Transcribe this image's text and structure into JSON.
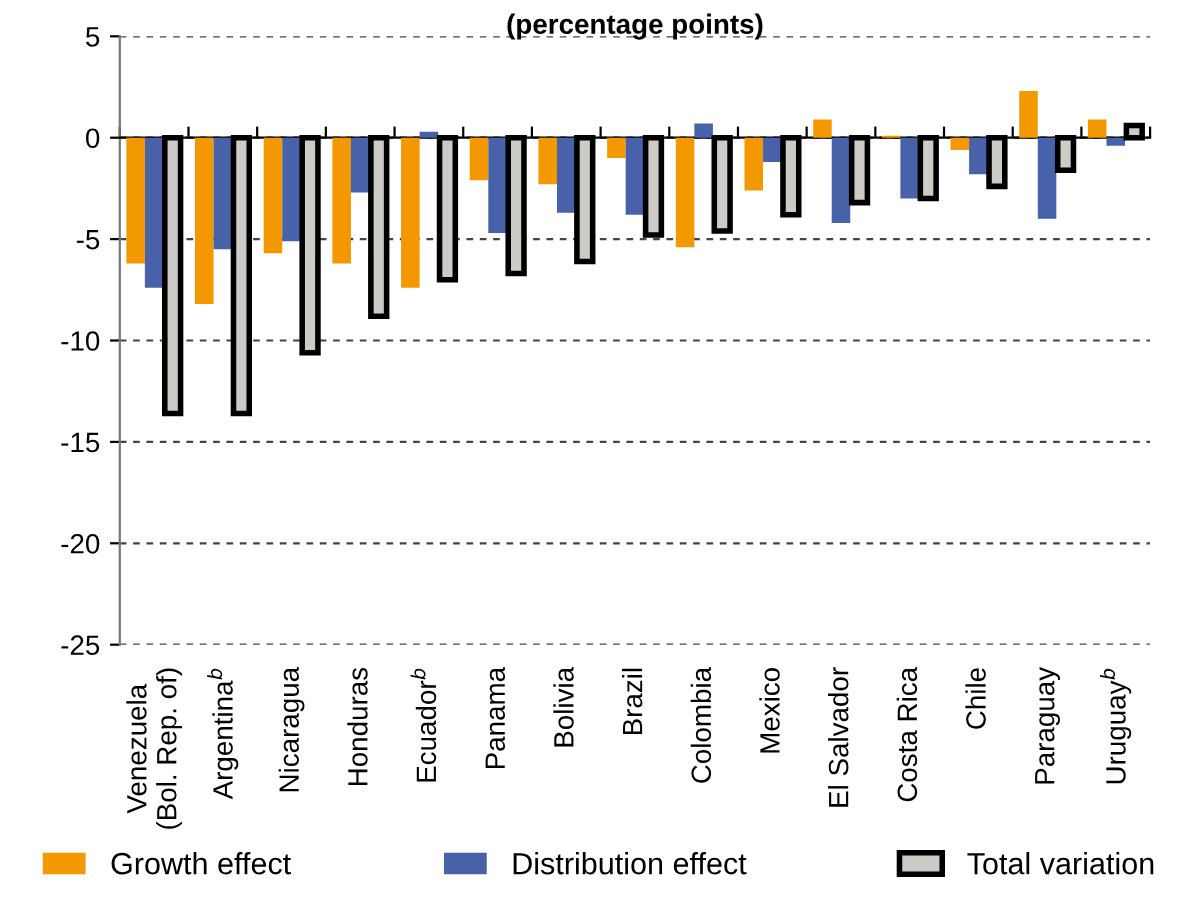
{
  "chart_data": {
    "type": "bar",
    "title": "(percentage points)",
    "categories": [
      "Venezuela\n(Bol. Rep. of)",
      "Argentina$^{b}$",
      "Nicaragua",
      "Honduras",
      "Ecuador$^{b}$",
      "Panama",
      "Bolivia",
      "Brazil",
      "Colombia",
      "Mexico",
      "El Salvador",
      "Costa Rica",
      "Chile",
      "Paraguay",
      "Uruguay$^{b}$"
    ],
    "series": [
      {
        "name": "Growth effect",
        "color": "#f39800",
        "values": [
          -6.2,
          -8.2,
          -5.7,
          -6.2,
          -7.4,
          -2.1,
          -2.3,
          -1.0,
          -5.4,
          -2.6,
          0.9,
          0.1,
          -0.6,
          2.3,
          0.9
        ]
      },
      {
        "name": "Distribution effect",
        "color": "#4762a8",
        "values": [
          -7.4,
          -5.5,
          -5.1,
          -2.7,
          0.3,
          -4.7,
          -3.7,
          -3.8,
          0.7,
          -1.2,
          -4.2,
          -3.0,
          -1.8,
          -4.0,
          -0.4
        ]
      },
      {
        "name": "Total variation",
        "color": "#cccbc6",
        "values": [
          -13.6,
          -13.6,
          -10.6,
          -8.8,
          -7.0,
          -6.7,
          -6.1,
          -4.8,
          -4.6,
          -3.8,
          -3.2,
          -3.0,
          -2.4,
          -1.6,
          0.6
        ]
      }
    ],
    "ylim": [
      -25,
      5
    ],
    "yticks": [
      -25,
      -20,
      -15,
      -10,
      -5,
      0,
      5
    ],
    "grid": "y",
    "legend": "bottom"
  }
}
